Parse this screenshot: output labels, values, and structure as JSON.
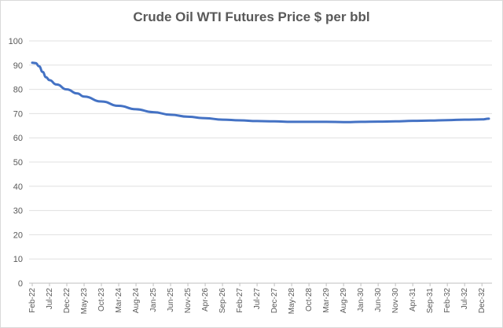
{
  "chart_data": {
    "type": "line",
    "title": "Crude Oil WTI Futures Price $ per bbl",
    "xlabel": "",
    "ylabel": "",
    "ylim": [
      0,
      100
    ],
    "yticks": [
      "0",
      "10",
      "20",
      "30",
      "40",
      "50",
      "60",
      "70",
      "80",
      "90",
      "100"
    ],
    "grid": true,
    "legend": "none",
    "x_tick_labels": [
      "Feb-22",
      "Jul-22",
      "Dec-22",
      "May-23",
      "Oct-23",
      "Mar-24",
      "Aug-24",
      "Jan-25",
      "Jun-25",
      "Nov-25",
      "Apr-26",
      "Sep-26",
      "Feb-27",
      "Jul-27",
      "Dec-27",
      "May-28",
      "Oct-28",
      "Mar-29",
      "Aug-29",
      "Jan-30",
      "Jun-30",
      "Nov-30",
      "Apr-31",
      "Sep-31",
      "Feb-32",
      "Jul-32",
      "Dec-32"
    ],
    "series": [
      {
        "color": "#4472c4",
        "x": [
          "Feb-22",
          "Mar-22",
          "Apr-22",
          "May-22",
          "Jun-22",
          "Jul-22",
          "Sep-22",
          "Dec-22",
          "Mar-23",
          "May-23",
          "Oct-23",
          "Mar-24",
          "Aug-24",
          "Jan-25",
          "Jun-25",
          "Nov-25",
          "Apr-26",
          "Sep-26",
          "Feb-27",
          "Jul-27",
          "Dec-27",
          "May-28",
          "Oct-28",
          "Mar-29",
          "Aug-29",
          "Oct-29",
          "Jan-30",
          "Jun-30",
          "Nov-30",
          "Apr-31",
          "Sep-31",
          "Feb-32",
          "Jul-32",
          "Dec-32",
          "Feb-33"
        ],
        "values": [
          91.0,
          90.8,
          89.5,
          87.2,
          85.0,
          83.8,
          82.0,
          80.0,
          78.3,
          77.0,
          75.0,
          73.2,
          71.8,
          70.6,
          69.5,
          68.7,
          68.1,
          67.5,
          67.2,
          66.9,
          66.8,
          66.6,
          66.6,
          66.6,
          66.5,
          66.5,
          66.6,
          66.7,
          66.8,
          67.0,
          67.1,
          67.3,
          67.5,
          67.6,
          67.9
        ]
      }
    ]
  }
}
